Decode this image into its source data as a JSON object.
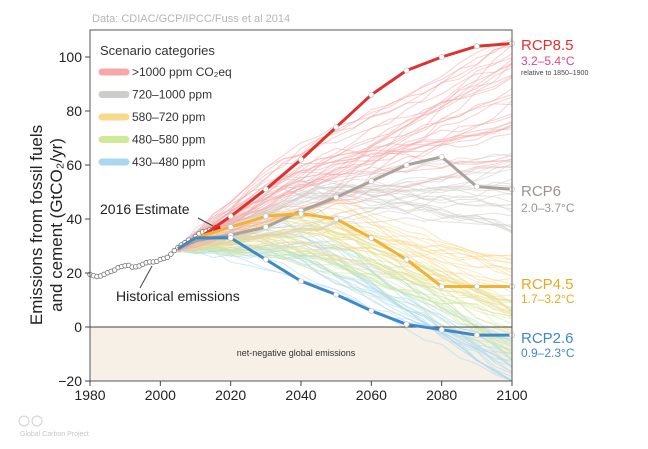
{
  "source": "Data: CDIAC/GCP/IPCC/Fuss et al 2014",
  "credit": "Global Carbon Project",
  "colors": {
    "rcp85": "#e0312f",
    "rcp6": "#a8a39c",
    "rcp45": "#f2b233",
    "rcp26": "#3d89c9",
    "range85": "#e0467a",
    "band_red": "#f5a7aa",
    "band_grey": "#cfcdc9",
    "band_yellow": "#f8d98c",
    "band_green": "#cfe89a",
    "band_blue": "#a9d8ee",
    "historical": "#222222",
    "estimate": "#d62020",
    "negative_zone": "#f6f0e6"
  },
  "legend": {
    "title": "Scenario categories",
    "items": [
      {
        "label": ">1000 ppm CO₂eq",
        "color": "#f5a7aa"
      },
      {
        "label": "720–1000 ppm",
        "color": "#cfcdc9"
      },
      {
        "label": "580–720 ppm",
        "color": "#f8d98c"
      },
      {
        "label": "480–580 ppm",
        "color": "#cfe89a"
      },
      {
        "label": "430–480 ppm",
        "color": "#a9d8ee"
      }
    ]
  },
  "annotations": {
    "estimate": "2016 Estimate",
    "historical": "Historical emissions",
    "negative": "net-negative global emissions"
  },
  "rcp_labels": {
    "rcp85": {
      "name": "RCP8.5",
      "range": "3.2–5.4°C",
      "ref": "relative to 1850–1900"
    },
    "rcp6": {
      "name": "RCP6",
      "range": "2.0–3.7°C"
    },
    "rcp45": {
      "name": "RCP4.5",
      "range": "1.7–3.2°C"
    },
    "rcp26": {
      "name": "RCP2.6",
      "range": "0.9–2.3°C"
    }
  },
  "chart_data": {
    "type": "line",
    "ylabel": "Emissions from fossil fuels and cement (GtCO₂/yr)",
    "xlim": [
      1980,
      2100
    ],
    "ylim": [
      -20,
      110
    ],
    "x_ticks": [
      1980,
      2000,
      2020,
      2040,
      2060,
      2080,
      2100
    ],
    "y_ticks": [
      -20,
      0,
      20,
      40,
      60,
      80,
      100
    ],
    "grid": false,
    "legend_position": "top-left",
    "historical": {
      "x": [
        1980,
        1981,
        1982,
        1983,
        1984,
        1985,
        1986,
        1987,
        1988,
        1989,
        1990,
        1991,
        1992,
        1993,
        1994,
        1995,
        1996,
        1997,
        1998,
        1999,
        2000,
        2001,
        2002,
        2003,
        2004,
        2005,
        2006,
        2007,
        2008,
        2009,
        2010,
        2011,
        2012,
        2013,
        2014,
        2015,
        2016
      ],
      "values": [
        19.5,
        19.0,
        18.7,
        18.9,
        19.5,
        20.1,
        20.6,
        21.1,
        22.0,
        22.4,
        22.7,
        22.8,
        22.2,
        22.3,
        22.6,
        23.2,
        23.8,
        24.1,
        24.1,
        24.3,
        25.0,
        25.4,
        25.8,
        27.0,
        28.3,
        29.4,
        30.4,
        31.2,
        32.2,
        31.8,
        33.5,
        34.6,
        35.2,
        35.5,
        36.0,
        36.0,
        36.2
      ]
    },
    "estimate_2016": {
      "x": 2016,
      "value": 36.5
    },
    "series": [
      {
        "name": "RCP8.5",
        "x": [
          2005,
          2010,
          2020,
          2030,
          2040,
          2050,
          2060,
          2070,
          2080,
          2090,
          2100
        ],
        "values": [
          29,
          32,
          41,
          51,
          62,
          74,
          86,
          95,
          100,
          104,
          105
        ]
      },
      {
        "name": "RCP6",
        "x": [
          2005,
          2010,
          2020,
          2030,
          2040,
          2050,
          2060,
          2070,
          2080,
          2090,
          2100
        ],
        "values": [
          29,
          32,
          34,
          37,
          43,
          48,
          54,
          60,
          63,
          52,
          51
        ]
      },
      {
        "name": "RCP4.5",
        "x": [
          2005,
          2010,
          2020,
          2030,
          2040,
          2050,
          2060,
          2070,
          2080,
          2090,
          2100
        ],
        "values": [
          29,
          33,
          37,
          41,
          42,
          40,
          33,
          25,
          15,
          15,
          15
        ]
      },
      {
        "name": "RCP2.6",
        "x": [
          2005,
          2010,
          2020,
          2030,
          2040,
          2050,
          2060,
          2070,
          2080,
          2090,
          2100
        ],
        "values": [
          29,
          33,
          33,
          25,
          17,
          12,
          6,
          1,
          -1,
          -3,
          -3
        ]
      }
    ]
  }
}
